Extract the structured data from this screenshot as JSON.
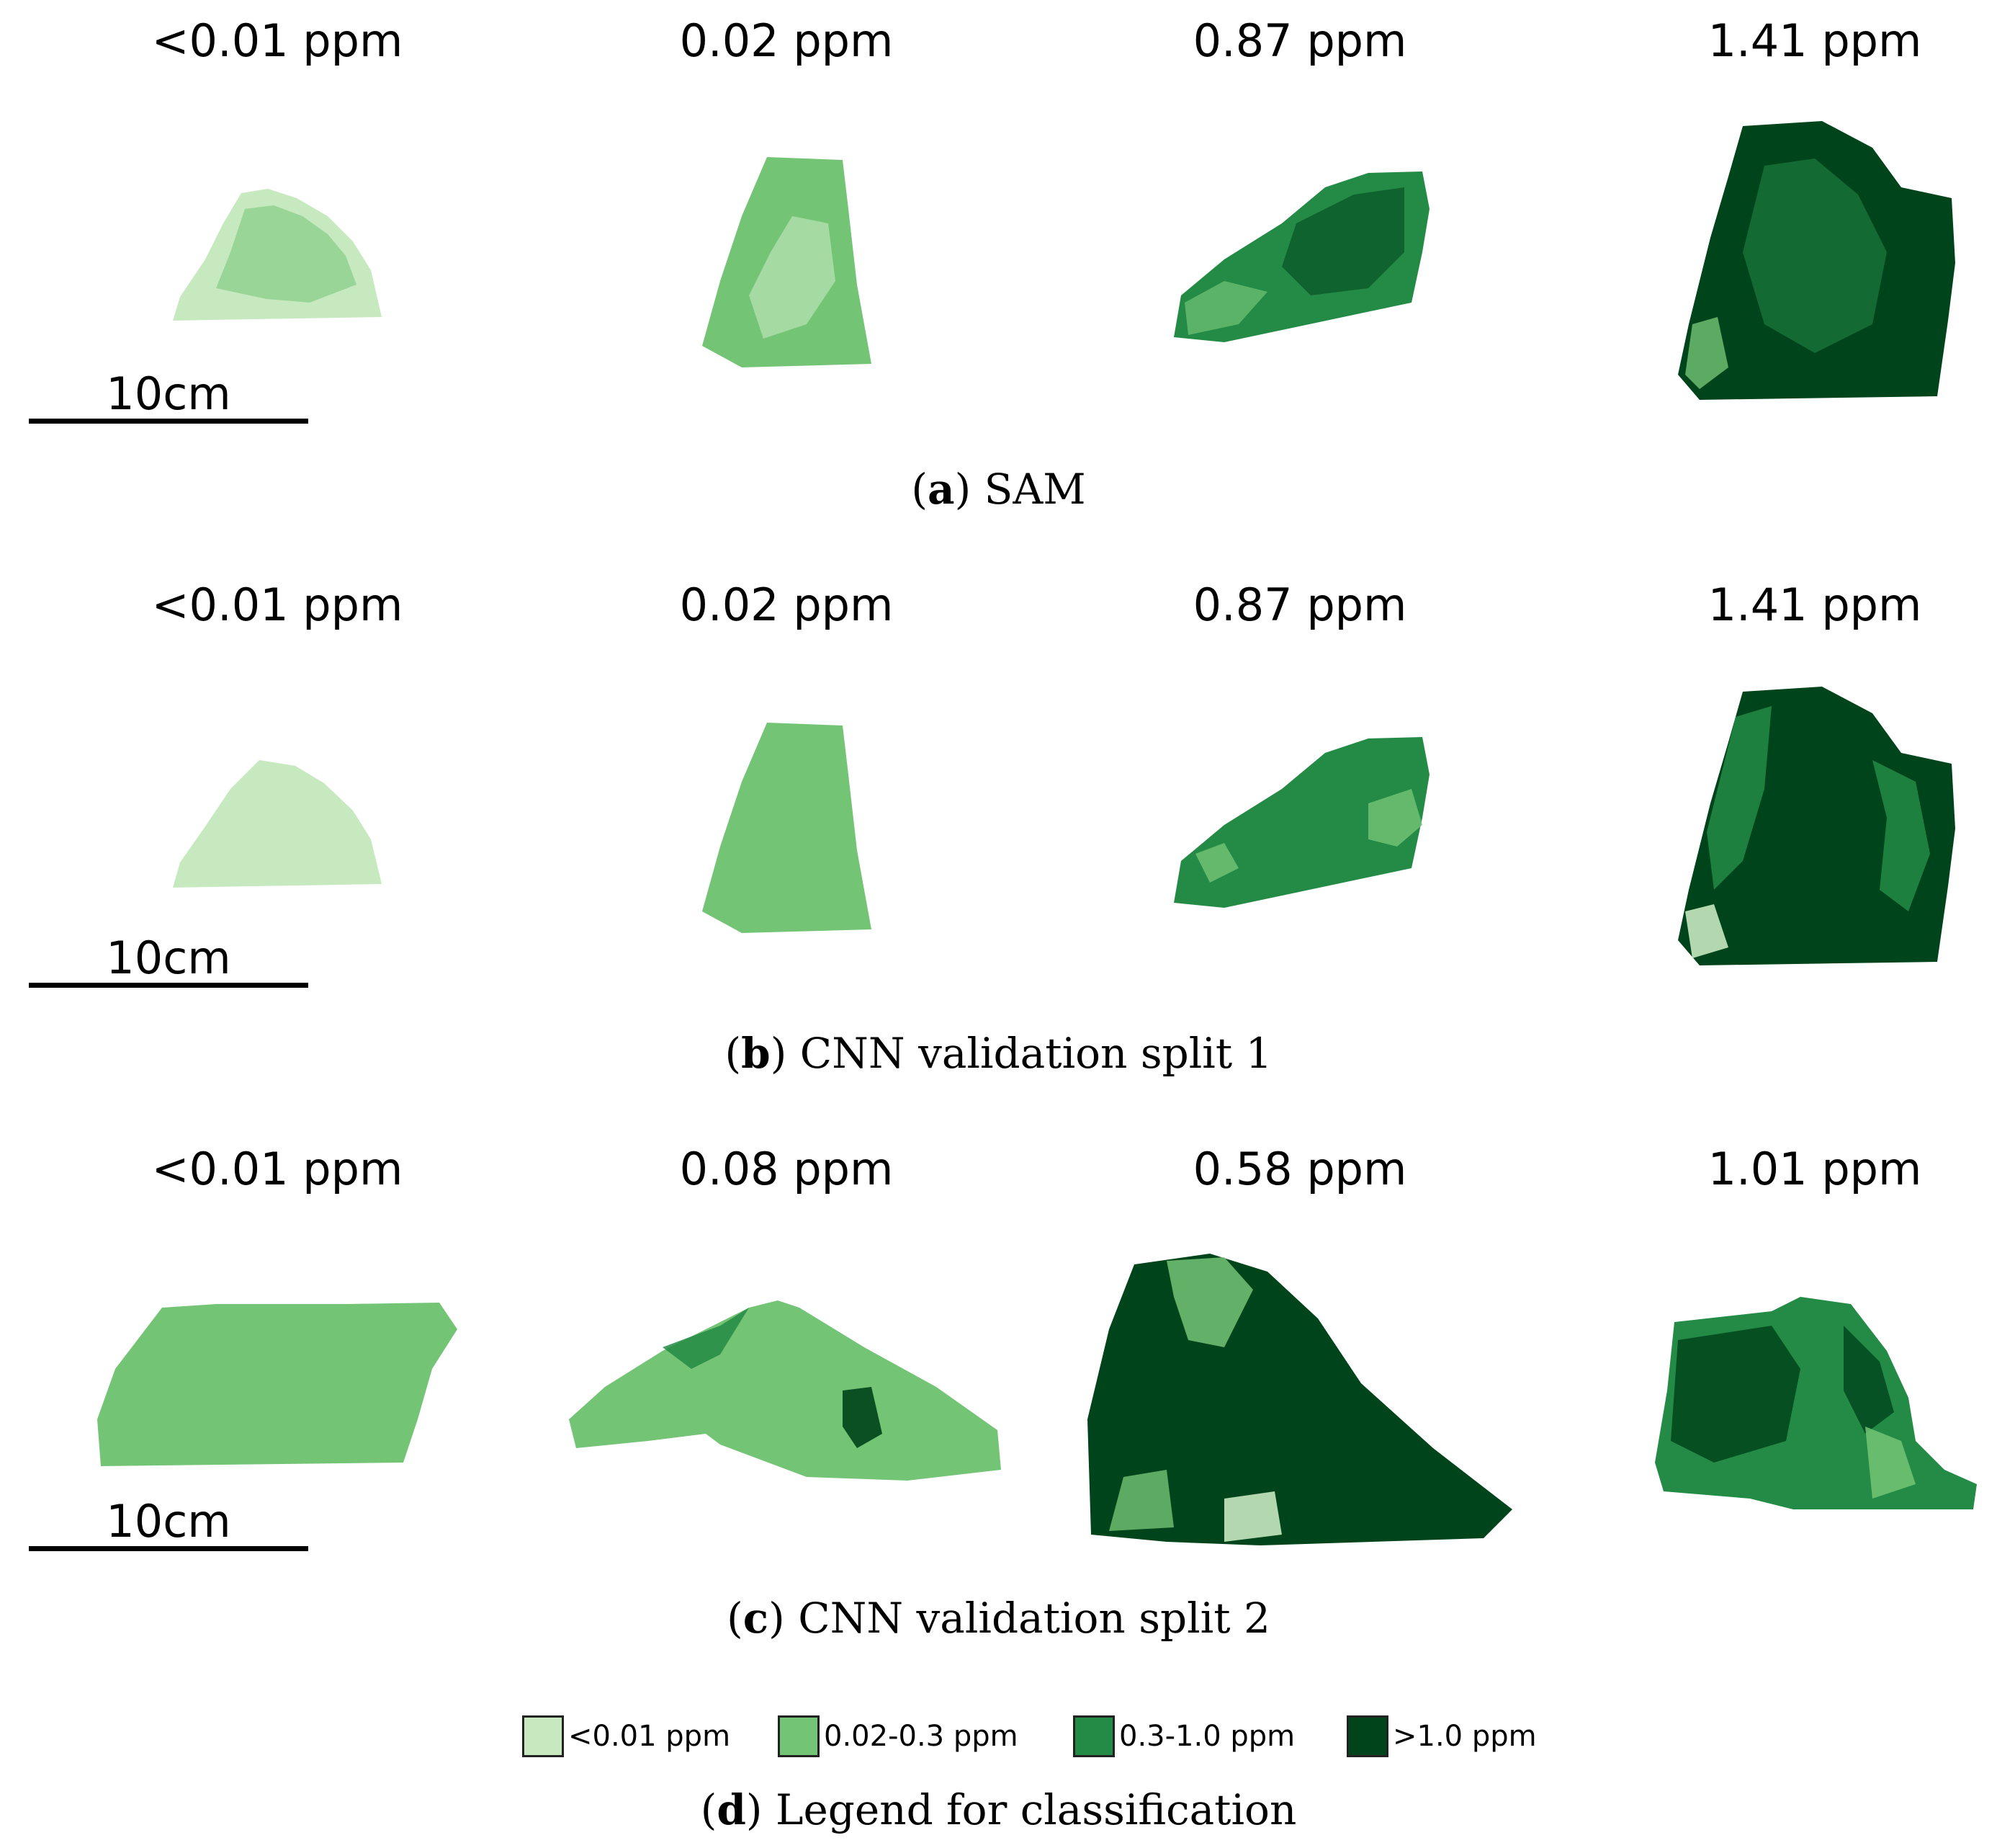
{
  "colors": {
    "class_lt001": "#c7e9c0",
    "class_002_03": "#74c476",
    "class_03_10": "#238b45",
    "class_gt10": "#00441b"
  },
  "panels": [
    {
      "id": "a",
      "method": "SAM",
      "caption_letter": "a",
      "caption_text": "SAM",
      "scale_label": "10cm",
      "samples": [
        {
          "label": "<0.01 ppm",
          "class": "class_lt001"
        },
        {
          "label": "0.02 ppm",
          "class": "class_002_03"
        },
        {
          "label": "0.87 ppm",
          "class": "class_03_10"
        },
        {
          "label": "1.41 ppm",
          "class": "class_gt10"
        }
      ]
    },
    {
      "id": "b",
      "method": "CNN validation split 1",
      "caption_letter": "b",
      "caption_text": "CNN validation split 1",
      "scale_label": "10cm",
      "samples": [
        {
          "label": "<0.01 ppm",
          "class": "class_lt001"
        },
        {
          "label": "0.02 ppm",
          "class": "class_002_03"
        },
        {
          "label": "0.87 ppm",
          "class": "class_03_10"
        },
        {
          "label": "1.41 ppm",
          "class": "class_gt10"
        }
      ]
    },
    {
      "id": "c",
      "method": "CNN validation split 2",
      "caption_letter": "c",
      "caption_text": "CNN validation split 2",
      "scale_label": "10cm",
      "samples": [
        {
          "label": "<0.01 ppm",
          "class": "class_002_03"
        },
        {
          "label": "0.08 ppm",
          "class": "class_002_03"
        },
        {
          "label": "0.58 ppm",
          "class": "class_gt10"
        },
        {
          "label": "1.01 ppm",
          "class": "class_03_10"
        }
      ]
    }
  ],
  "legend": {
    "caption_letter": "d",
    "caption_text": "Legend for classification",
    "items": [
      {
        "label": "<0.01 ppm",
        "class": "class_lt001"
      },
      {
        "label": "0.02-0.3 ppm",
        "class": "class_002_03"
      },
      {
        "label": "0.3-1.0 ppm",
        "class": "class_03_10"
      },
      {
        "label": ">1.0 ppm",
        "class": "class_gt10"
      }
    ]
  }
}
